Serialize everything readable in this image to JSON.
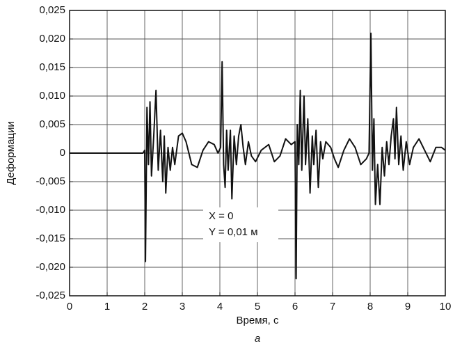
{
  "chart_data": {
    "type": "line",
    "x_label": "Время, с",
    "y_label": "Деформации",
    "caption": "а",
    "annotations": [
      "X = 0",
      "Y = 0,01 м"
    ],
    "color": "#111111",
    "grid": true,
    "xlim": [
      0,
      10
    ],
    "xticks": [
      0,
      1,
      2,
      3,
      4,
      5,
      6,
      7,
      8,
      9,
      10
    ],
    "ylim": [
      -0.025,
      0.025
    ],
    "yticks": [
      {
        "value": -0.025,
        "label": "-0,025"
      },
      {
        "value": -0.02,
        "label": "-0,020"
      },
      {
        "value": -0.015,
        "label": "-0,015"
      },
      {
        "value": -0.01,
        "label": "-0,010"
      },
      {
        "value": -0.005,
        "label": "-0,005"
      },
      0,
      {
        "value": 0.005,
        "label": "0,005"
      },
      {
        "value": 0.01,
        "label": "0,010"
      },
      {
        "value": 0.015,
        "label": "0,015"
      },
      {
        "value": 0.02,
        "label": "0,020"
      },
      {
        "value": 0.025,
        "label": "0,025"
      }
    ],
    "x": [
      0,
      1,
      1.95,
      2.0,
      2.02,
      2.06,
      2.1,
      2.14,
      2.18,
      2.24,
      2.3,
      2.36,
      2.42,
      2.48,
      2.52,
      2.56,
      2.62,
      2.68,
      2.74,
      2.8,
      2.9,
      3.0,
      3.1,
      3.25,
      3.4,
      3.55,
      3.7,
      3.85,
      3.95,
      4.02,
      4.06,
      4.1,
      4.14,
      4.18,
      4.22,
      4.28,
      4.32,
      4.38,
      4.44,
      4.5,
      4.56,
      4.62,
      4.68,
      4.76,
      4.84,
      4.95,
      5.1,
      5.3,
      5.45,
      5.6,
      5.75,
      5.9,
      6.0,
      6.03,
      6.06,
      6.1,
      6.14,
      6.18,
      6.24,
      6.28,
      6.34,
      6.4,
      6.46,
      6.5,
      6.56,
      6.62,
      6.68,
      6.74,
      6.82,
      6.95,
      7.05,
      7.15,
      7.3,
      7.45,
      7.6,
      7.75,
      7.9,
      7.97,
      8.02,
      8.06,
      8.1,
      8.14,
      8.2,
      8.26,
      8.32,
      8.38,
      8.44,
      8.5,
      8.56,
      8.62,
      8.66,
      8.7,
      8.76,
      8.82,
      8.88,
      8.96,
      9.05,
      9.15,
      9.3,
      9.45,
      9.6,
      9.75,
      9.9,
      10
    ],
    "values": [
      0,
      0,
      0,
      0.0005,
      -0.019,
      0.008,
      -0.002,
      0.009,
      -0.004,
      0.003,
      0.011,
      -0.003,
      0.004,
      -0.005,
      0.003,
      -0.007,
      0.001,
      -0.003,
      0.001,
      -0.002,
      0.003,
      0.0035,
      0.002,
      -0.002,
      -0.0025,
      0.0005,
      0.002,
      0.0015,
      0,
      0.001,
      0.016,
      -0.002,
      -0.006,
      0.004,
      -0.003,
      0.004,
      -0.008,
      0.003,
      -0.002,
      0.003,
      0.005,
      0.001,
      -0.002,
      0.002,
      -0.0005,
      -0.0015,
      0.0005,
      0.0015,
      -0.0015,
      -0.0005,
      0.0025,
      0.0015,
      0.002,
      -0.022,
      0.005,
      -0.002,
      0.011,
      -0.003,
      0.01,
      -0.002,
      0.006,
      -0.007,
      0.003,
      -0.002,
      0.004,
      -0.006,
      0.002,
      -0.001,
      0.002,
      0.001,
      -0.001,
      -0.0025,
      0.0005,
      0.0025,
      0.001,
      -0.002,
      -0.001,
      0,
      0.021,
      -0.003,
      0.006,
      -0.009,
      -0.002,
      -0.009,
      0.001,
      -0.004,
      0.002,
      -0.002,
      0.003,
      0.006,
      -0.001,
      0.008,
      -0.002,
      0.003,
      -0.003,
      0.002,
      -0.002,
      0.001,
      0.0025,
      0.0005,
      -0.0015,
      0.001,
      0.001,
      0.0005
    ]
  }
}
